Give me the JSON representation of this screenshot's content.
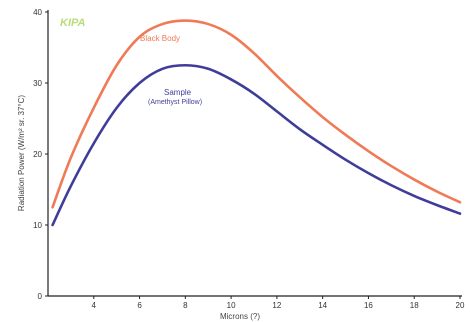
{
  "logo_text": "KIPA",
  "chart_data": {
    "type": "line",
    "title": "",
    "xlabel": "Microns (?)",
    "ylabel": "Radiation Power (W/m² sr. 37°C)",
    "xlim": [
      2,
      20
    ],
    "ylim": [
      0,
      40
    ],
    "x_ticks": [
      "4",
      "6",
      "8",
      "10",
      "12",
      "14",
      "16",
      "18",
      "20"
    ],
    "y_ticks": [
      "0",
      "10",
      "20",
      "30",
      "40"
    ],
    "x": [
      2.2,
      3,
      4,
      5,
      6,
      7,
      8,
      9,
      10,
      11,
      12,
      13,
      14,
      15,
      16,
      17,
      18,
      19,
      20
    ],
    "series": [
      {
        "name": "Black Body",
        "color": "#ef7a55",
        "values": [
          12.5,
          19.5,
          26.5,
          32.5,
          36.5,
          38.3,
          38.8,
          38.3,
          36.8,
          34.2,
          31.0,
          28.0,
          25.2,
          22.7,
          20.4,
          18.3,
          16.4,
          14.7,
          13.2
        ]
      },
      {
        "name": "Sample",
        "sublabel": "(Amethyst Pillow)",
        "color": "#3f3d99",
        "values": [
          10.0,
          15.5,
          21.5,
          26.5,
          30.0,
          32.0,
          32.5,
          32.0,
          30.5,
          28.5,
          26.0,
          23.5,
          21.3,
          19.2,
          17.3,
          15.6,
          14.1,
          12.8,
          11.6
        ]
      }
    ]
  }
}
